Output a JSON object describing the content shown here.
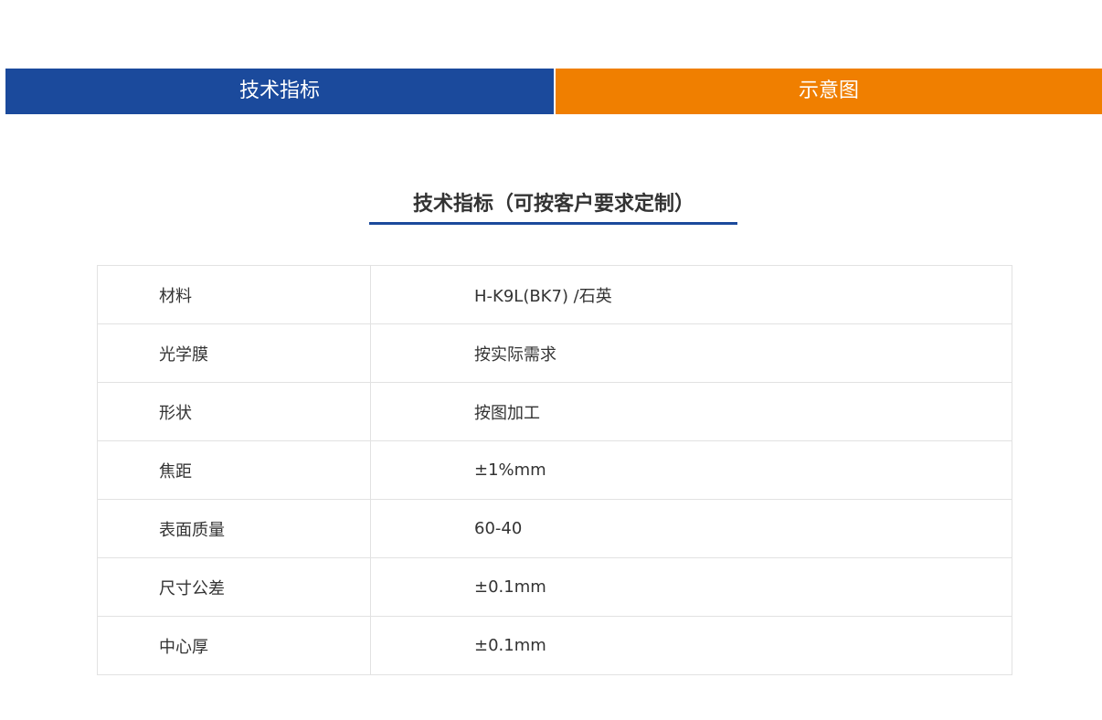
{
  "tabs": [
    {
      "label": "技术指标",
      "color": "#1b4a9c"
    },
    {
      "label": "示意图",
      "color": "#f07f00"
    }
  ],
  "section": {
    "title": "技术指标（可按客户要求定制）"
  },
  "specs": [
    {
      "name": "材料",
      "value": "H-K9L(BK7) /石英"
    },
    {
      "name": "光学膜",
      "value": "按实际需求"
    },
    {
      "name": "形状",
      "value": "按图加工"
    },
    {
      "name": "焦距",
      "value": "±1%mm"
    },
    {
      "name": "表面质量",
      "value": "60-40"
    },
    {
      "name": "尺寸公差",
      "value": "±0.1mm"
    },
    {
      "name": "中心厚",
      "value": "±0.1mm"
    }
  ]
}
